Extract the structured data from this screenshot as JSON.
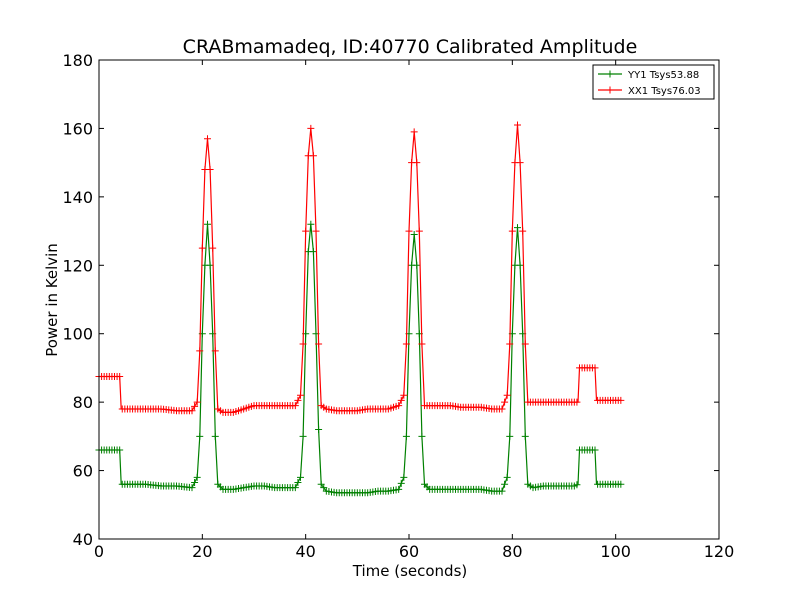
{
  "chart_data": {
    "type": "line",
    "title": "CRABmamadeq, ID:40770 Calibrated Amplitude",
    "xlabel": "Time (seconds)",
    "ylabel": "Power in Kelvin",
    "xlim": [
      0,
      120
    ],
    "ylim": [
      40,
      180
    ],
    "xticks": [
      0,
      20,
      40,
      60,
      80,
      100,
      120
    ],
    "yticks": [
      40,
      60,
      80,
      100,
      120,
      140,
      160,
      180
    ],
    "grid": false,
    "legend_position": "top-right",
    "marker": "+",
    "series": [
      {
        "name": "YY1 Tsys53.88",
        "color": "#008000",
        "x": [
          0,
          4,
          4.3,
          9,
          12,
          15,
          18,
          19,
          19.5,
          20,
          20.5,
          21,
          21.5,
          22,
          22.5,
          23,
          24,
          26,
          28,
          30,
          32,
          34,
          36,
          38,
          39,
          39.5,
          40,
          40.5,
          41,
          41.5,
          42,
          42.5,
          43,
          44,
          46,
          48,
          50,
          52,
          54,
          56,
          58,
          59,
          59.5,
          60,
          60.5,
          61,
          61.5,
          62,
          62.5,
          63,
          64,
          66,
          68,
          70,
          72,
          74,
          76,
          78,
          79,
          79.5,
          80,
          80.5,
          81,
          81.5,
          82,
          82.5,
          83,
          84,
          86,
          88,
          90,
          92,
          92.7,
          93,
          96,
          96.3,
          101
        ],
        "y": [
          66,
          66,
          56,
          56,
          55.5,
          55.5,
          55,
          58,
          70,
          100,
          120,
          132,
          120,
          100,
          70,
          56,
          54.5,
          54.5,
          55,
          55.5,
          55.5,
          55,
          55,
          55,
          58,
          70,
          100,
          124,
          132,
          124,
          100,
          72,
          56,
          54,
          53.5,
          53.5,
          53.5,
          53.5,
          54,
          54,
          54.5,
          58,
          70,
          100,
          120,
          129,
          120,
          100,
          70,
          56,
          54.5,
          54.5,
          54.5,
          54.5,
          54.5,
          54.5,
          54,
          54,
          58,
          70,
          100,
          120,
          131,
          120,
          100,
          70,
          56,
          55,
          55.5,
          55.5,
          55.5,
          55.5,
          56,
          66,
          66,
          56,
          56
        ]
      },
      {
        "name": "XX1 Tsys76.03",
        "color": "#ff0000",
        "x": [
          0,
          4,
          4.3,
          9,
          12,
          15,
          18,
          19,
          19.5,
          20,
          20.5,
          21,
          21.5,
          22,
          22.5,
          23,
          24,
          26,
          28,
          30,
          32,
          34,
          36,
          38,
          39,
          39.5,
          40,
          40.5,
          41,
          41.5,
          42,
          42.5,
          43,
          44,
          46,
          48,
          50,
          52,
          54,
          56,
          58,
          59,
          59.5,
          60,
          60.5,
          61,
          61.5,
          62,
          62.5,
          63,
          64,
          66,
          68,
          70,
          72,
          74,
          76,
          78,
          79,
          79.5,
          80,
          80.5,
          81,
          81.5,
          82,
          82.5,
          83,
          84,
          86,
          88,
          90,
          92,
          92.7,
          93,
          96,
          96.3,
          101
        ],
        "y": [
          87.5,
          87.5,
          78,
          78,
          78,
          77.5,
          77.5,
          80,
          95,
          125,
          148,
          157,
          148,
          125,
          95,
          78,
          77,
          77,
          78,
          79,
          79,
          79,
          79,
          79,
          82,
          97,
          130,
          152,
          160,
          152,
          130,
          97,
          79,
          78,
          77.5,
          77.5,
          77.5,
          78,
          78,
          78,
          79,
          82,
          97,
          130,
          150,
          159,
          150,
          130,
          97,
          79,
          79,
          79,
          79,
          78.5,
          78.5,
          78.5,
          78,
          78,
          82,
          97,
          130,
          150,
          161,
          150,
          130,
          97,
          80,
          80,
          80,
          80,
          80,
          80,
          80,
          90,
          90,
          80.5,
          80.5
        ]
      }
    ]
  }
}
